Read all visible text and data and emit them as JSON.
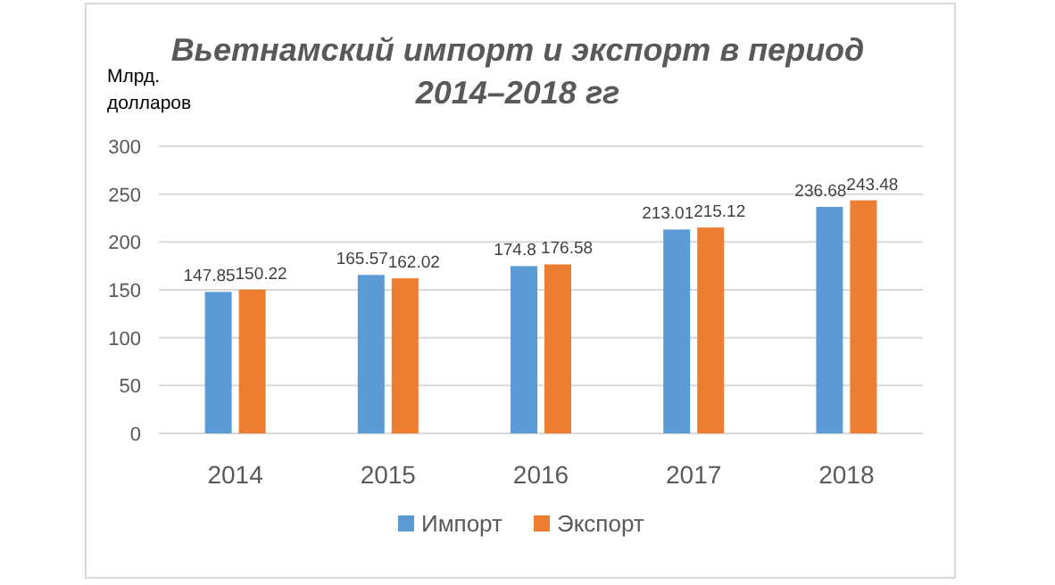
{
  "chart_data": {
    "type": "bar",
    "title": "Вьетнамский импорт и экспорт в период\n2014–2018 гг",
    "ylabel": "Млрд.\nдолларов",
    "categories": [
      "2014",
      "2015",
      "2016",
      "2017",
      "2018"
    ],
    "series": [
      {
        "name": "Импорт",
        "color": "#5b9bd5",
        "values": [
          147.85,
          165.57,
          174.8,
          213.01,
          236.68
        ]
      },
      {
        "name": "Экспорт",
        "color": "#ed7d31",
        "values": [
          150.22,
          162.02,
          176.58,
          215.12,
          243.48
        ]
      }
    ],
    "ylim": [
      0,
      300
    ],
    "yticks": [
      0,
      50,
      100,
      150,
      200,
      250,
      300
    ],
    "grid": "y",
    "legend": "bottom",
    "data_labels": true
  }
}
